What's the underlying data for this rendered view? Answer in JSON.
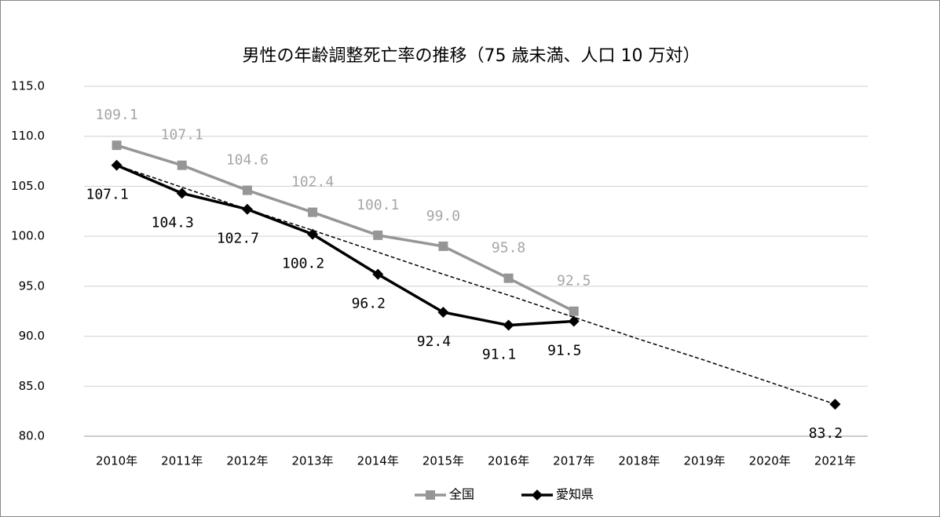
{
  "chart_data": {
    "type": "line",
    "title": "男性の年齢調整死亡率の推移（75 歳未満、人口 10 万対）",
    "categories": [
      "2010年",
      "2011年",
      "2012年",
      "2013年",
      "2014年",
      "2015年",
      "2016年",
      "2017年",
      "2018年",
      "2019年",
      "2020年",
      "2021年"
    ],
    "series": [
      {
        "name": "全国",
        "color": "#969696",
        "marker": "square",
        "label_color": "#a6a6a6",
        "label_position": "above",
        "values": [
          109.1,
          107.1,
          104.6,
          102.4,
          100.1,
          99.0,
          95.8,
          92.5,
          null,
          null,
          null,
          null
        ],
        "value_labels": [
          "109.1",
          "107.1",
          "104.6",
          "102.4",
          "100.1",
          "99.0",
          "95.8",
          "92.5",
          null,
          null,
          null,
          null
        ]
      },
      {
        "name": "愛知県",
        "color": "#000000",
        "marker": "diamond",
        "label_color": "#000000",
        "label_position": "below",
        "values": [
          107.1,
          104.3,
          102.7,
          100.2,
          96.2,
          92.4,
          91.1,
          91.5,
          null,
          null,
          null,
          83.2
        ],
        "value_labels": [
          "107.1",
          "104.3",
          "102.7",
          "100.2",
          "96.2",
          "92.4",
          "91.1",
          "91.5",
          null,
          null,
          null,
          "83.2"
        ]
      }
    ],
    "trendline": {
      "color": "#000000",
      "dashed": true,
      "values": [
        107.1,
        104.9,
        102.7,
        100.6,
        98.4,
        96.2,
        94.1,
        91.9,
        89.7,
        87.6,
        85.4,
        83.2
      ]
    },
    "ylim": [
      80,
      115
    ],
    "yticks": [
      {
        "value": 80,
        "label": "80.0"
      },
      {
        "value": 85,
        "label": "85.0"
      },
      {
        "value": 90,
        "label": "90.0"
      },
      {
        "value": 95,
        "label": "95.0"
      },
      {
        "value": 100,
        "label": "100.0"
      },
      {
        "value": 105,
        "label": "105.0"
      },
      {
        "value": 110,
        "label": "110.0"
      },
      {
        "value": 115,
        "label": "115.0"
      }
    ],
    "grid": true,
    "legend": "bottom"
  }
}
